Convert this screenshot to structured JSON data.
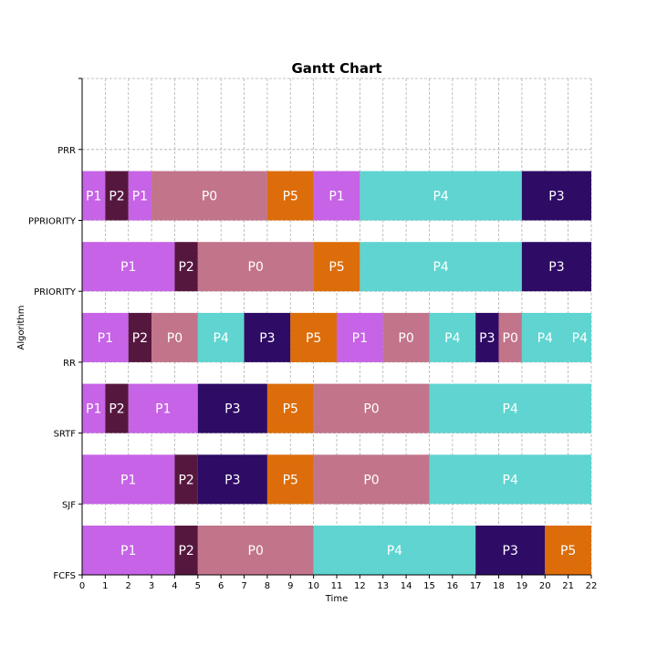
{
  "chart_data": {
    "type": "gantt",
    "title": "Gantt Chart",
    "xlabel": "Time",
    "ylabel": "Algorithm",
    "xlim": [
      0,
      22
    ],
    "x_ticks": [
      0,
      1,
      2,
      3,
      4,
      5,
      6,
      7,
      8,
      9,
      10,
      11,
      12,
      13,
      14,
      15,
      16,
      17,
      18,
      19,
      20,
      21,
      22
    ],
    "grid": true,
    "categories": [
      "FCFS",
      "SJF",
      "SRTF",
      "RR",
      "PRIORITY",
      "PPRIORITY",
      "PRR"
    ],
    "colors": {
      "P0": "#c2748a",
      "P1": "#c663e6",
      "P2": "#56173f",
      "P3": "#2e0b65",
      "P4": "#5fd4d0",
      "P5": "#dc6d0a"
    },
    "rows": [
      {
        "algorithm": "FCFS",
        "segments": [
          {
            "process": "P1",
            "start": 0,
            "end": 4
          },
          {
            "process": "P2",
            "start": 4,
            "end": 5
          },
          {
            "process": "P0",
            "start": 5,
            "end": 10
          },
          {
            "process": "P4",
            "start": 10,
            "end": 17
          },
          {
            "process": "P3",
            "start": 17,
            "end": 20
          },
          {
            "process": "P5",
            "start": 20,
            "end": 22
          }
        ]
      },
      {
        "algorithm": "SJF",
        "segments": [
          {
            "process": "P1",
            "start": 0,
            "end": 4
          },
          {
            "process": "P2",
            "start": 4,
            "end": 5
          },
          {
            "process": "P3",
            "start": 5,
            "end": 8
          },
          {
            "process": "P5",
            "start": 8,
            "end": 10
          },
          {
            "process": "P0",
            "start": 10,
            "end": 15
          },
          {
            "process": "P4",
            "start": 15,
            "end": 22
          }
        ]
      },
      {
        "algorithm": "SRTF",
        "segments": [
          {
            "process": "P1",
            "start": 0,
            "end": 1
          },
          {
            "process": "P2",
            "start": 1,
            "end": 2
          },
          {
            "process": "P1",
            "start": 2,
            "end": 5
          },
          {
            "process": "P3",
            "start": 5,
            "end": 8
          },
          {
            "process": "P5",
            "start": 8,
            "end": 10
          },
          {
            "process": "P0",
            "start": 10,
            "end": 15
          },
          {
            "process": "P4",
            "start": 15,
            "end": 22
          }
        ]
      },
      {
        "algorithm": "RR",
        "segments": [
          {
            "process": "P1",
            "start": 0,
            "end": 2
          },
          {
            "process": "P2",
            "start": 2,
            "end": 3
          },
          {
            "process": "P0",
            "start": 3,
            "end": 5
          },
          {
            "process": "P4",
            "start": 5,
            "end": 7
          },
          {
            "process": "P3",
            "start": 7,
            "end": 9
          },
          {
            "process": "P5",
            "start": 9,
            "end": 11
          },
          {
            "process": "P1",
            "start": 11,
            "end": 13
          },
          {
            "process": "P0",
            "start": 13,
            "end": 15
          },
          {
            "process": "P4",
            "start": 15,
            "end": 17
          },
          {
            "process": "P3",
            "start": 17,
            "end": 18
          },
          {
            "process": "P0",
            "start": 18,
            "end": 19
          },
          {
            "process": "P4",
            "start": 19,
            "end": 21
          },
          {
            "process": "P4",
            "start": 21,
            "end": 22
          }
        ]
      },
      {
        "algorithm": "PRIORITY",
        "segments": [
          {
            "process": "P1",
            "start": 0,
            "end": 4
          },
          {
            "process": "P2",
            "start": 4,
            "end": 5
          },
          {
            "process": "P0",
            "start": 5,
            "end": 10
          },
          {
            "process": "P5",
            "start": 10,
            "end": 12
          },
          {
            "process": "P4",
            "start": 12,
            "end": 19
          },
          {
            "process": "P3",
            "start": 19,
            "end": 22
          }
        ]
      },
      {
        "algorithm": "PPRIORITY",
        "segments": [
          {
            "process": "P1",
            "start": 0,
            "end": 1
          },
          {
            "process": "P2",
            "start": 1,
            "end": 2
          },
          {
            "process": "P1",
            "start": 2,
            "end": 3
          },
          {
            "process": "P0",
            "start": 3,
            "end": 8
          },
          {
            "process": "P5",
            "start": 8,
            "end": 10
          },
          {
            "process": "P1",
            "start": 10,
            "end": 12
          },
          {
            "process": "P4",
            "start": 12,
            "end": 19
          },
          {
            "process": "P3",
            "start": 19,
            "end": 22
          }
        ]
      },
      {
        "algorithm": "PRR",
        "segments": []
      }
    ]
  }
}
